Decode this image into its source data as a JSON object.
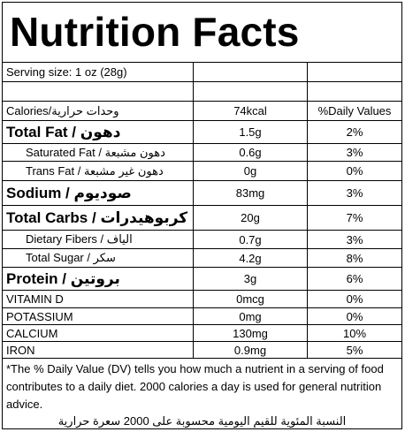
{
  "title": "Nutrition Facts",
  "serving": "Serving size: 1 oz (28g)",
  "header": {
    "label": "Calories/وحدات حرارية",
    "amount": "74kcal",
    "dv": "%Daily Values"
  },
  "rows": [
    {
      "label": "Total Fat / دهون",
      "amount": "1.5g",
      "dv": "2%"
    },
    {
      "label": "Saturated Fat / دهون مشبعة",
      "amount": "0.6g",
      "dv": "3%"
    },
    {
      "label": "Trans Fat / دهون غير مشبعة",
      "amount": "0g",
      "dv": "0%"
    },
    {
      "label": "Sodium / صوديوم",
      "amount": "83mg",
      "dv": "3%"
    },
    {
      "label": "Total Carbs / كربوهيدرات",
      "amount": "20g",
      "dv": "7%"
    },
    {
      "label": "Dietary Fibers / الياف",
      "amount": "0.7g",
      "dv": "3%"
    },
    {
      "label": "Total Sugar / سكر",
      "amount": "4.2g",
      "dv": "8%"
    },
    {
      "label": "Protein / بروتين",
      "amount": "3g",
      "dv": "6%"
    },
    {
      "label": "VITAMIN D",
      "amount": "0mcg",
      "dv": "0%"
    },
    {
      "label": "POTASSIUM",
      "amount": "0mg",
      "dv": "0%"
    },
    {
      "label": "CALCIUM",
      "amount": "130mg",
      "dv": "10%"
    },
    {
      "label": "IRON",
      "amount": "0.9mg",
      "dv": "5%"
    }
  ],
  "footnote": {
    "english": "*The % Daily Value (DV) tells you how much a nutrient in a serving of food contributes to a daily diet. 2000 calories a day is used for general nutrition advice.",
    "arabic": "النسبة المئوية للقيم اليومية محسوبة على 2000 سعرة حرارية"
  }
}
